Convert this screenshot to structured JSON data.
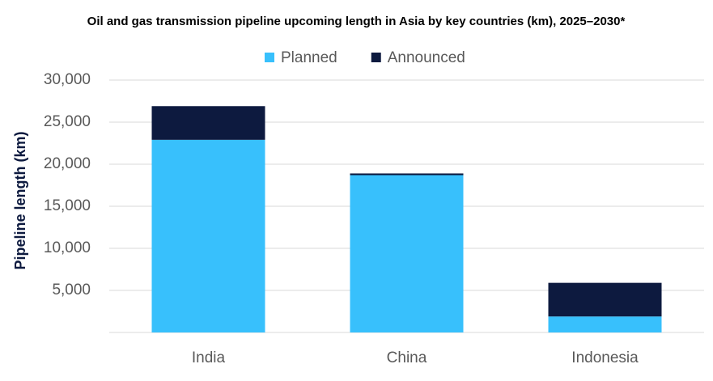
{
  "chart_data": {
    "type": "stacked_bar",
    "title": "Oil and gas transmission pipeline upcoming length in Asia by key countries (km), 2025–2030*",
    "y_label": "Pipeline length (km)",
    "categories": [
      "India",
      "China",
      "Indonesia"
    ],
    "series": [
      {
        "name": "Planned",
        "color": "#38c0fc",
        "values": [
          22900,
          18700,
          1900
        ]
      },
      {
        "name": "Announced",
        "color": "#0d1a3f",
        "values": [
          4000,
          200,
          4000
        ]
      }
    ],
    "ylim": [
      0,
      30000
    ],
    "yticks": [
      {
        "value": 5000,
        "label": "5,000"
      },
      {
        "value": 10000,
        "label": "10,000"
      },
      {
        "value": 15000,
        "label": "15,000"
      },
      {
        "value": 20000,
        "label": "20,000"
      },
      {
        "value": 25000,
        "label": "25,000"
      },
      {
        "value": 30000,
        "label": "30,000"
      }
    ],
    "grid": true,
    "legend": "top"
  }
}
